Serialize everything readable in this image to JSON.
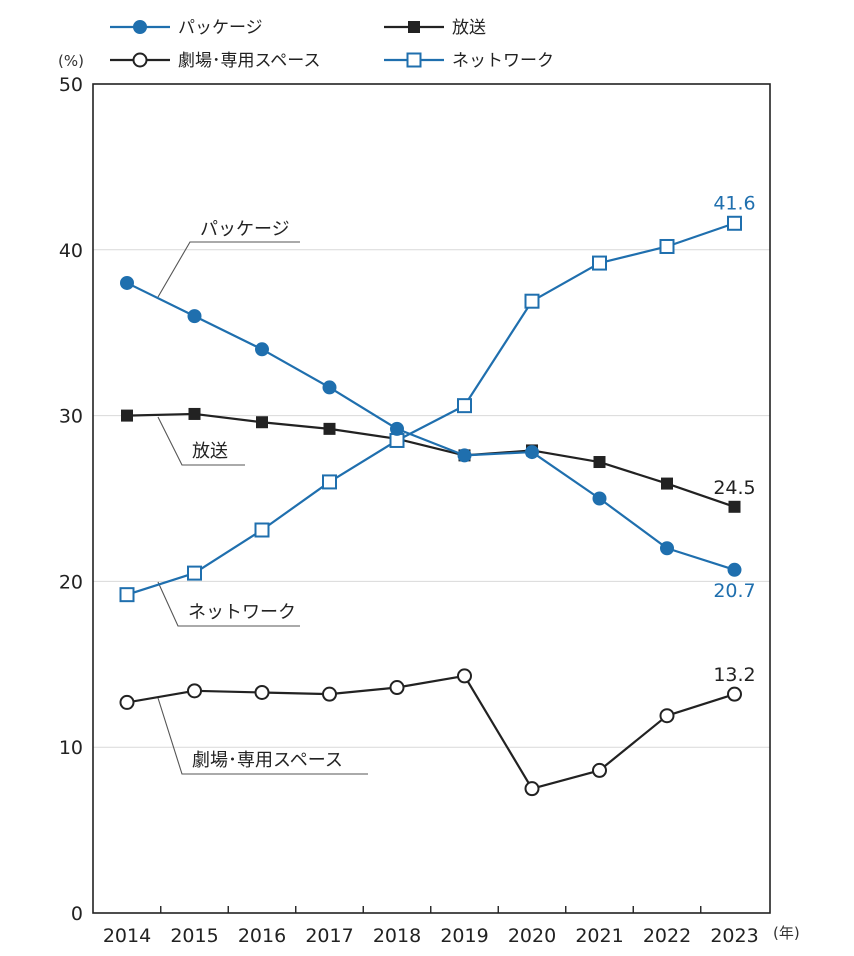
{
  "chart_data": {
    "type": "line",
    "ylabel": "(%)",
    "xlabel": "(年)",
    "ylim": [
      0,
      50
    ],
    "yticks": [
      0,
      10,
      20,
      30,
      40,
      50
    ],
    "x": [
      "2014",
      "2015",
      "2016",
      "2017",
      "2018",
      "2019",
      "2020",
      "2021",
      "2022",
      "2023"
    ],
    "grid": "horizontal",
    "legend_position": "top",
    "series": [
      {
        "name": "パッケージ",
        "color": "#1f6fae",
        "marker": "filled-circle",
        "values": [
          38.0,
          36.0,
          34.0,
          31.7,
          29.2,
          27.6,
          27.8,
          25.0,
          22.0,
          20.7
        ],
        "end_label": "20.7",
        "callout": "パッケージ"
      },
      {
        "name": "放送",
        "color": "#222222",
        "marker": "filled-square",
        "values": [
          30.0,
          30.1,
          29.6,
          29.2,
          28.6,
          27.6,
          27.9,
          27.2,
          25.9,
          24.5
        ],
        "end_label": "24.5",
        "callout": "放送"
      },
      {
        "name": "劇場･専用スペース",
        "color": "#222222",
        "marker": "open-circle",
        "values": [
          12.7,
          13.4,
          13.3,
          13.2,
          13.6,
          14.3,
          7.5,
          8.6,
          11.9,
          13.2
        ],
        "end_label": "13.2",
        "callout": "劇場･専用スペース"
      },
      {
        "name": "ネットワーク",
        "color": "#1f6fae",
        "marker": "open-square",
        "values": [
          19.2,
          20.5,
          23.1,
          26.0,
          28.5,
          30.6,
          36.9,
          39.2,
          40.2,
          41.6
        ],
        "end_label": "41.6",
        "callout": "ネットワーク"
      }
    ]
  }
}
